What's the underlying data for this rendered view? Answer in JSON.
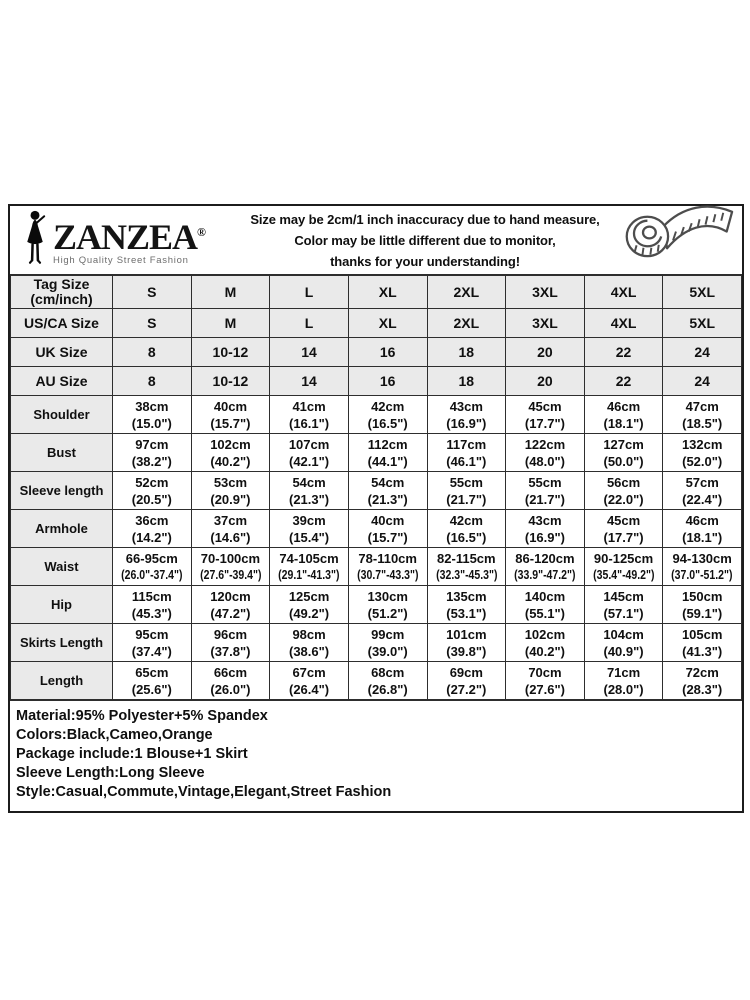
{
  "brand": {
    "name": "ZANZEA",
    "registered": "®",
    "tagline": "High Quality Street Fashion"
  },
  "notice": {
    "lines": [
      "Size may be 2cm/1 inch inaccuracy due to hand measure,",
      "Color may be little different due to monitor,",
      "thanks for your understanding!"
    ]
  },
  "icons": {
    "tape_measure": "tape-measure-icon",
    "woman_silhouette": "woman-silhouette-icon"
  },
  "size_table": {
    "size_rows": [
      {
        "label": "Tag Size",
        "sublabel": "(cm/inch)",
        "values": [
          "S",
          "M",
          "L",
          "XL",
          "2XL",
          "3XL",
          "4XL",
          "5XL"
        ]
      },
      {
        "label": "US/CA Size",
        "values": [
          "S",
          "M",
          "L",
          "XL",
          "2XL",
          "3XL",
          "4XL",
          "5XL"
        ]
      },
      {
        "label": "UK Size",
        "values": [
          "8",
          "10-12",
          "14",
          "16",
          "18",
          "20",
          "22",
          "24"
        ]
      },
      {
        "label": "AU Size",
        "values": [
          "8",
          "10-12",
          "14",
          "16",
          "18",
          "20",
          "22",
          "24"
        ]
      }
    ],
    "measure_rows": [
      {
        "label": "Shoulder",
        "cm": [
          "38cm",
          "40cm",
          "41cm",
          "42cm",
          "43cm",
          "45cm",
          "46cm",
          "47cm"
        ],
        "inch": [
          "(15.0\")",
          "(15.7\")",
          "(16.1\")",
          "(16.5\")",
          "(16.9\")",
          "(17.7\")",
          "(18.1\")",
          "(18.5\")"
        ]
      },
      {
        "label": "Bust",
        "cm": [
          "97cm",
          "102cm",
          "107cm",
          "112cm",
          "117cm",
          "122cm",
          "127cm",
          "132cm"
        ],
        "inch": [
          "(38.2\")",
          "(40.2\")",
          "(42.1\")",
          "(44.1\")",
          "(46.1\")",
          "(48.0\")",
          "(50.0\")",
          "(52.0\")"
        ]
      },
      {
        "label": "Sleeve length",
        "cm": [
          "52cm",
          "53cm",
          "54cm",
          "54cm",
          "55cm",
          "55cm",
          "56cm",
          "57cm"
        ],
        "inch": [
          "(20.5\")",
          "(20.9\")",
          "(21.3\")",
          "(21.3\")",
          "(21.7\")",
          "(21.7\")",
          "(22.0\")",
          "(22.4\")"
        ]
      },
      {
        "label": "Armhole",
        "cm": [
          "36cm",
          "37cm",
          "39cm",
          "40cm",
          "42cm",
          "43cm",
          "45cm",
          "46cm"
        ],
        "inch": [
          "(14.2\")",
          "(14.6\")",
          "(15.4\")",
          "(15.7\")",
          "(16.5\")",
          "(16.9\")",
          "(17.7\")",
          "(18.1\")"
        ]
      },
      {
        "label": "Waist",
        "cm": [
          "66-95cm",
          "70-100cm",
          "74-105cm",
          "78-110cm",
          "82-115cm",
          "86-120cm",
          "90-125cm",
          "94-130cm"
        ],
        "inch": [
          "(26.0\"-37.4\")",
          "(27.6\"-39.4\")",
          "(29.1\"-41.3\")",
          "(30.7\"-43.3\")",
          "(32.3\"-45.3\")",
          "(33.9\"-47.2\")",
          "(35.4\"-49.2\")",
          "(37.0\"-51.2\")"
        ]
      },
      {
        "label": "Hip",
        "cm": [
          "115cm",
          "120cm",
          "125cm",
          "130cm",
          "135cm",
          "140cm",
          "145cm",
          "150cm"
        ],
        "inch": [
          "(45.3\")",
          "(47.2\")",
          "(49.2\")",
          "(51.2\")",
          "(53.1\")",
          "(55.1\")",
          "(57.1\")",
          "(59.1\")"
        ]
      },
      {
        "label": "Skirts Length",
        "cm": [
          "95cm",
          "96cm",
          "98cm",
          "99cm",
          "101cm",
          "102cm",
          "104cm",
          "105cm"
        ],
        "inch": [
          "(37.4\")",
          "(37.8\")",
          "(38.6\")",
          "(39.0\")",
          "(39.8\")",
          "(40.2\")",
          "(40.9\")",
          "(41.3\")"
        ]
      },
      {
        "label": "Length",
        "cm": [
          "65cm",
          "66cm",
          "67cm",
          "68cm",
          "69cm",
          "70cm",
          "71cm",
          "72cm"
        ],
        "inch": [
          "(25.6\")",
          "(26.0\")",
          "(26.4\")",
          "(26.8\")",
          "(27.2\")",
          "(27.6\")",
          "(28.0\")",
          "(28.3\")"
        ]
      }
    ]
  },
  "details": {
    "lines": [
      "Material:95% Polyester+5% Spandex",
      "Colors:Black,Cameo,Orange",
      "Package include:1 Blouse+1 Skirt",
      "Sleeve Length:Long Sleeve",
      "Style:Casual,Commute,Vintage,Elegant,Street Fashion"
    ]
  },
  "colors": {
    "header_fill": "#eaeaea",
    "border": "#2e2e2e",
    "text": "#101010"
  }
}
